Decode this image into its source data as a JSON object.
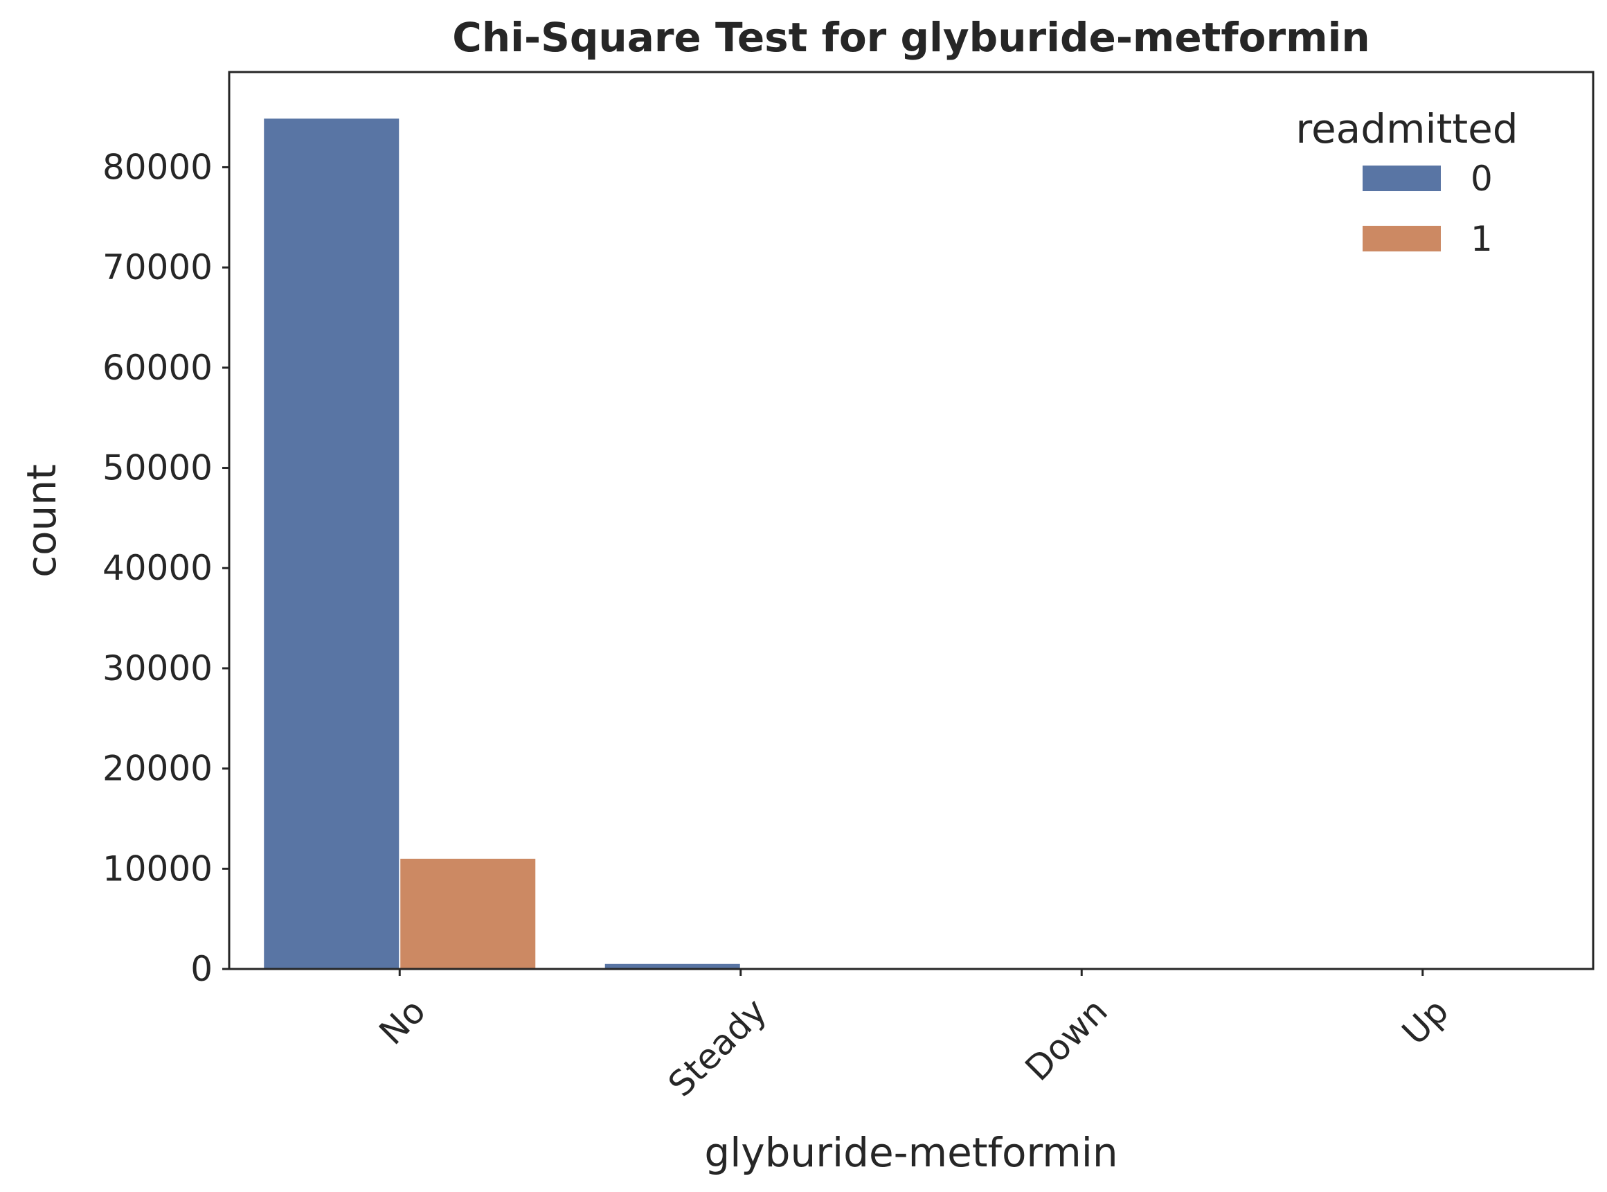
{
  "chart_data": {
    "type": "bar",
    "title": "Chi-Square Test for glyburide-metformin",
    "xlabel": "glyburide-metformin",
    "ylabel": "count",
    "categories": [
      "No",
      "Steady",
      "Down",
      "Up"
    ],
    "series": [
      {
        "name": "0",
        "values": [
          84850,
          500,
          5,
          2
        ],
        "color": "#5975a4"
      },
      {
        "name": "1",
        "values": [
          11000,
          30,
          1,
          0
        ],
        "color": "#cc8963"
      }
    ],
    "ylim": [
      0,
      89500
    ],
    "yticks": [
      0,
      10000,
      20000,
      30000,
      40000,
      50000,
      60000,
      70000,
      80000
    ],
    "ytick_labels": [
      "0",
      "10000",
      "20000",
      "30000",
      "40000",
      "50000",
      "60000",
      "70000",
      "80000"
    ],
    "legend_title": "readmitted",
    "legend_position": "top-right",
    "grid": false,
    "xtick_rotation": -45
  }
}
